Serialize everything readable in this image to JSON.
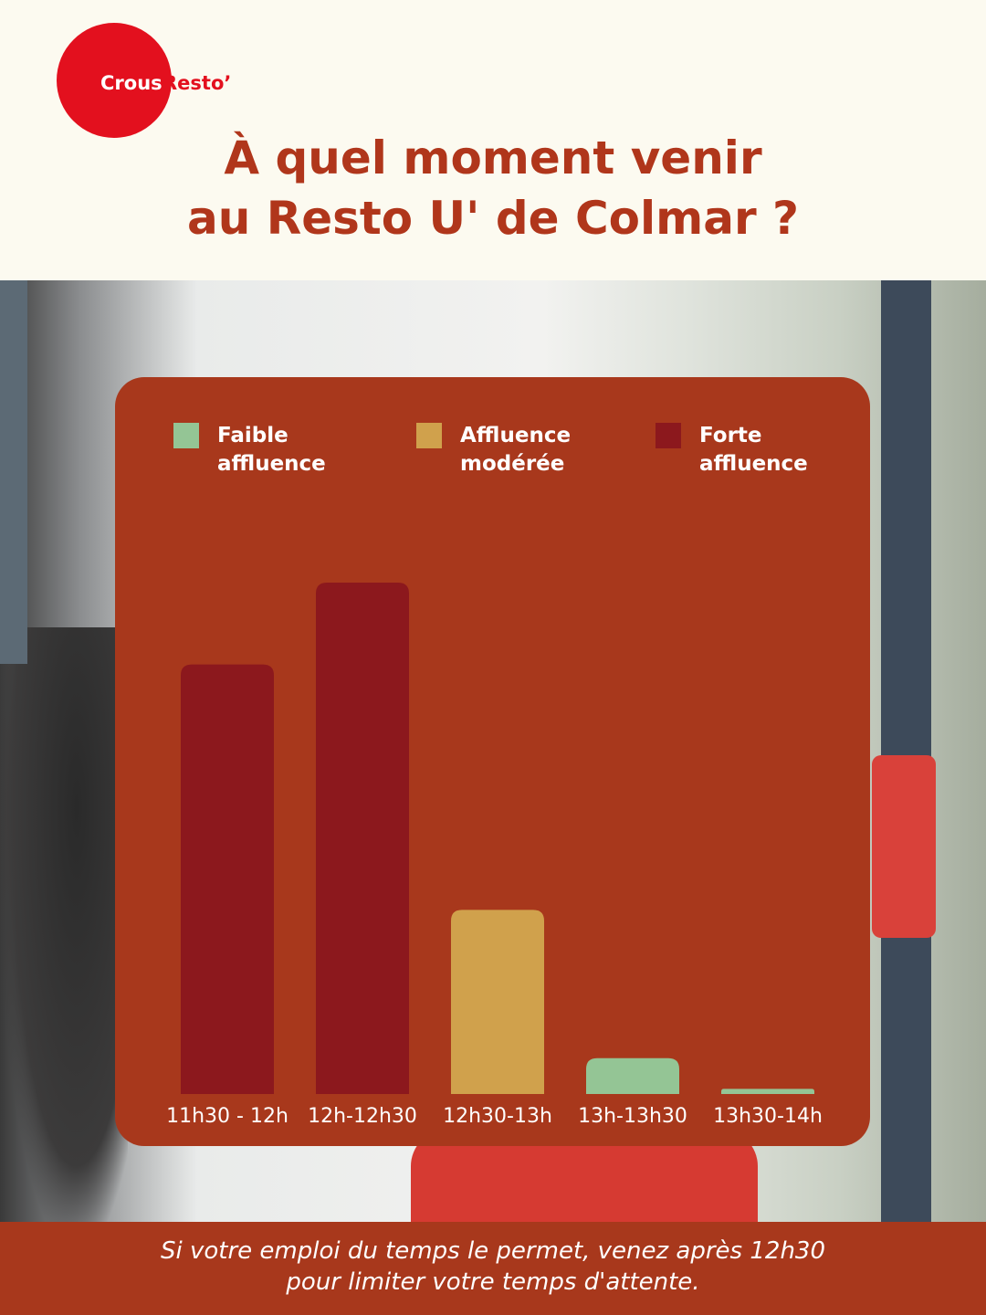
{
  "header": {
    "logo": [
      "Crous",
      "Resto’"
    ],
    "title_lines": [
      "À quel moment venir",
      "au Resto U' de Colmar ?"
    ]
  },
  "chart_data": {
    "type": "bar",
    "categories": [
      "11h30 - 12h",
      "12h-12h30",
      "12h30-13h",
      "13h-13h30",
      "13h30-14h"
    ],
    "series": [
      {
        "name": "Faible affluence",
        "color": "#94c595",
        "values": [
          null,
          null,
          null,
          7,
          1
        ]
      },
      {
        "name": "Affluence modérée",
        "color": "#d0a14c",
        "values": [
          null,
          null,
          36,
          null,
          null
        ]
      },
      {
        "name": "Forte affluence",
        "color": "#8c181d",
        "values": [
          84,
          100,
          null,
          null,
          null
        ]
      }
    ],
    "ylim": [
      0,
      100
    ]
  },
  "footer": {
    "lines": [
      "Si votre emploi du temps le permet, venez après 12h30",
      "pour limiter votre temps d'attente."
    ]
  }
}
